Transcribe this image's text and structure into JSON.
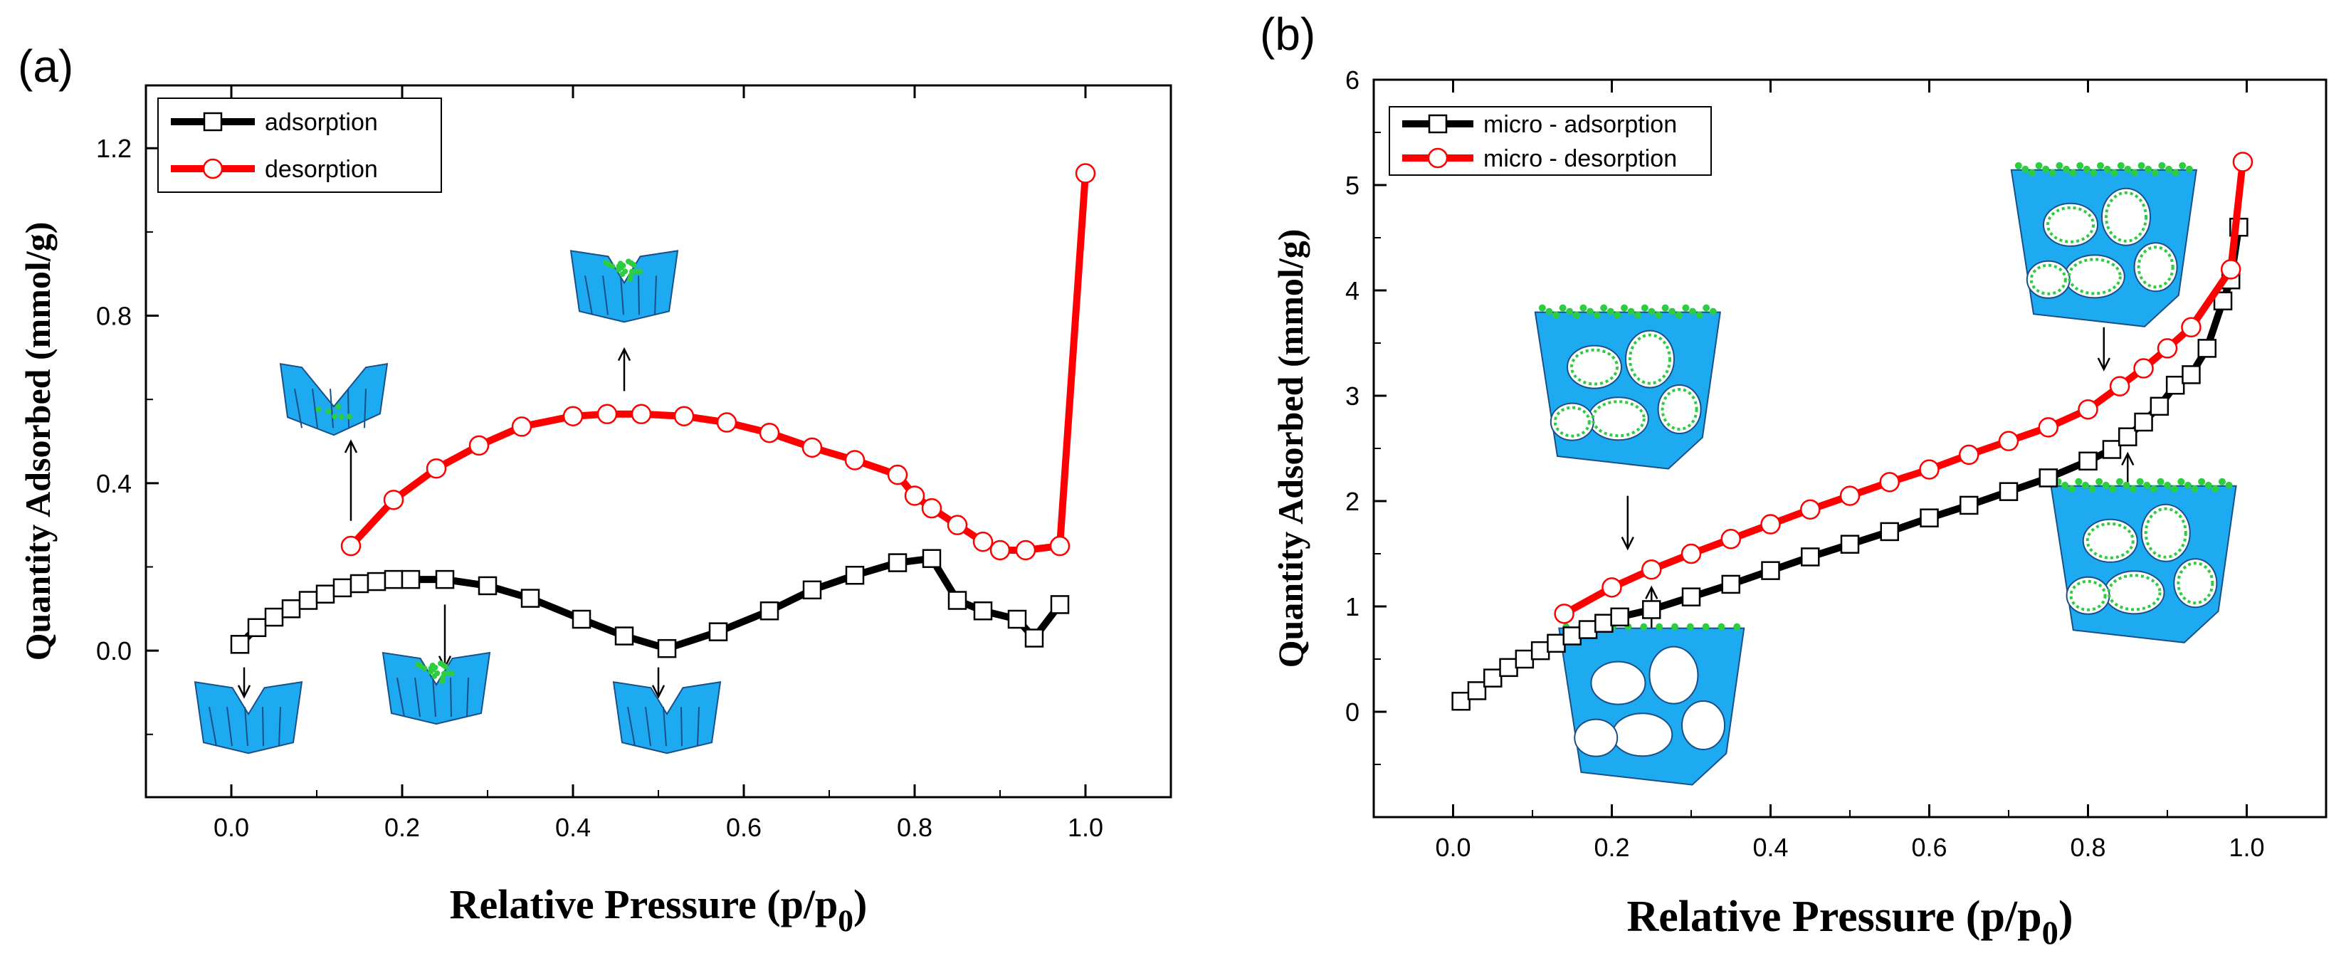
{
  "chart_data": [
    {
      "type": "line",
      "panel_label": "(a)",
      "xlabel": "Relative Pressure (p/p0)",
      "xlabel_main": "Relative Pressure (p/p",
      "xlabel_sub": "0",
      "xlabel_close": ")",
      "ylabel": "Quantity Adsorbed (mmol/g)",
      "xlim": [
        -0.1,
        1.1
      ],
      "ylim": [
        -0.35,
        1.35
      ],
      "x_ticks": [
        0.0,
        0.2,
        0.4,
        0.6,
        0.8,
        1.0
      ],
      "x_tick_labels": [
        "0.0",
        "0.2",
        "0.4",
        "0.6",
        "0.8",
        "1.0"
      ],
      "y_ticks": [
        0.0,
        0.4,
        0.8,
        1.2
      ],
      "y_tick_labels": [
        "0.0",
        "0.4",
        "0.8",
        "1.2"
      ],
      "legend": {
        "position": "top-left",
        "entries": [
          "adsorption",
          "desorption"
        ]
      },
      "series": [
        {
          "name": "adsorption",
          "line_color": "#000000",
          "marker": "square",
          "x": [
            0.01,
            0.03,
            0.05,
            0.07,
            0.09,
            0.11,
            0.13,
            0.15,
            0.17,
            0.19,
            0.21,
            0.25,
            0.3,
            0.35,
            0.41,
            0.46,
            0.51,
            0.57,
            0.63,
            0.68,
            0.73,
            0.78,
            0.82,
            0.85,
            0.88,
            0.92,
            0.94,
            0.97
          ],
          "y": [
            0.015,
            0.055,
            0.08,
            0.1,
            0.12,
            0.135,
            0.15,
            0.16,
            0.165,
            0.17,
            0.17,
            0.17,
            0.155,
            0.125,
            0.075,
            0.035,
            0.005,
            0.045,
            0.095,
            0.145,
            0.18,
            0.21,
            0.22,
            0.12,
            0.095,
            0.075,
            0.03,
            0.11
          ]
        },
        {
          "name": "desorption",
          "line_color": "#ff0000",
          "marker": "circle",
          "x": [
            0.14,
            0.19,
            0.24,
            0.29,
            0.34,
            0.4,
            0.44,
            0.48,
            0.53,
            0.58,
            0.63,
            0.68,
            0.73,
            0.78,
            0.8,
            0.82,
            0.85,
            0.88,
            0.9,
            0.93,
            0.97,
            1.0
          ],
          "y": [
            0.25,
            0.36,
            0.435,
            0.49,
            0.535,
            0.56,
            0.565,
            0.565,
            0.56,
            0.545,
            0.52,
            0.485,
            0.455,
            0.42,
            0.37,
            0.34,
            0.3,
            0.26,
            0.24,
            0.24,
            0.25,
            1.14
          ]
        }
      ],
      "annotations": [
        {
          "kind": "inset",
          "variant": "empty-pore",
          "at": [
            0.02,
            -0.16
          ],
          "arrow_from": [
            0.015,
            -0.04
          ],
          "arrow_to": [
            0.015,
            -0.11
          ]
        },
        {
          "kind": "inset",
          "variant": "partially-filled",
          "at": [
            0.24,
            -0.09
          ],
          "arrow_from": [
            0.25,
            0.11
          ],
          "arrow_to": [
            0.25,
            -0.04
          ]
        },
        {
          "kind": "inset",
          "variant": "empty-pore",
          "at": [
            0.51,
            -0.16
          ],
          "arrow_from": [
            0.5,
            -0.04
          ],
          "arrow_to": [
            0.5,
            -0.11
          ]
        },
        {
          "kind": "inset",
          "variant": "u-shape",
          "at": [
            0.12,
            0.6
          ],
          "arrow_from": [
            0.14,
            0.31
          ],
          "arrow_to": [
            0.14,
            0.5
          ]
        },
        {
          "kind": "inset",
          "variant": "filled-pore",
          "at": [
            0.46,
            0.87
          ],
          "arrow_from": [
            0.46,
            0.62
          ],
          "arrow_to": [
            0.46,
            0.72
          ]
        }
      ]
    },
    {
      "type": "line",
      "panel_label": "(b)",
      "xlabel": "Relative Pressure (p/p0)",
      "xlabel_main": "Relative Pressure (p/p",
      "xlabel_sub": "0",
      "xlabel_close": ")",
      "ylabel": "Quantity Adsorbed (mmol/g)",
      "xlim": [
        -0.1,
        1.1
      ],
      "ylim": [
        -1.0,
        6.0
      ],
      "x_ticks": [
        0.0,
        0.2,
        0.4,
        0.6,
        0.8,
        1.0
      ],
      "x_tick_labels": [
        "0.0",
        "0.2",
        "0.4",
        "0.6",
        "0.8",
        "1.0"
      ],
      "y_ticks": [
        0,
        1,
        2,
        3,
        4,
        5,
        6
      ],
      "y_tick_labels": [
        "0",
        "1",
        "2",
        "3",
        "4",
        "5",
        "6"
      ],
      "legend": {
        "position": "top-left",
        "entries": [
          "micro - adsorption",
          "micro - desorption"
        ]
      },
      "series": [
        {
          "name": "micro - adsorption",
          "line_color": "#000000",
          "marker": "square",
          "x": [
            0.01,
            0.03,
            0.05,
            0.07,
            0.09,
            0.11,
            0.13,
            0.15,
            0.17,
            0.19,
            0.21,
            0.25,
            0.3,
            0.35,
            0.4,
            0.45,
            0.5,
            0.55,
            0.6,
            0.65,
            0.7,
            0.75,
            0.8,
            0.83,
            0.85,
            0.87,
            0.89,
            0.91,
            0.93,
            0.95,
            0.97,
            0.98,
            0.99
          ],
          "y": [
            0.1,
            0.2,
            0.32,
            0.42,
            0.5,
            0.58,
            0.65,
            0.72,
            0.78,
            0.84,
            0.9,
            0.97,
            1.09,
            1.21,
            1.34,
            1.47,
            1.59,
            1.71,
            1.84,
            1.96,
            2.09,
            2.22,
            2.38,
            2.49,
            2.61,
            2.75,
            2.9,
            3.1,
            3.2,
            3.45,
            3.9,
            4.1,
            4.6
          ]
        },
        {
          "name": "micro - desorption",
          "line_color": "#ff0000",
          "marker": "circle",
          "x": [
            0.14,
            0.2,
            0.25,
            0.3,
            0.35,
            0.4,
            0.45,
            0.5,
            0.55,
            0.6,
            0.65,
            0.7,
            0.75,
            0.8,
            0.84,
            0.87,
            0.9,
            0.93,
            0.98,
            0.995
          ],
          "y": [
            0.93,
            1.18,
            1.35,
            1.5,
            1.64,
            1.78,
            1.92,
            2.05,
            2.18,
            2.3,
            2.44,
            2.57,
            2.7,
            2.87,
            3.09,
            3.26,
            3.45,
            3.65,
            4.2,
            5.22
          ]
        }
      ],
      "annotations": [
        {
          "kind": "inset",
          "variant": "micropore-empty",
          "at": [
            0.25,
            0.05
          ],
          "arrow_from": [
            0.25,
            0.75
          ],
          "arrow_to": [
            0.25,
            1.18
          ]
        },
        {
          "kind": "inset",
          "variant": "micropore-partial",
          "at": [
            0.22,
            3.05
          ],
          "arrow_from": [
            0.22,
            2.05
          ],
          "arrow_to": [
            0.22,
            1.55
          ]
        },
        {
          "kind": "inset",
          "variant": "micropore-full",
          "at": [
            0.82,
            4.4
          ],
          "arrow_from": [
            0.82,
            3.65
          ],
          "arrow_to": [
            0.82,
            3.25
          ]
        },
        {
          "kind": "inset",
          "variant": "micropore-filled-bottom",
          "at": [
            0.87,
            1.4
          ],
          "arrow_from": [
            0.85,
            2.05
          ],
          "arrow_to": [
            0.85,
            2.45
          ]
        }
      ]
    }
  ]
}
